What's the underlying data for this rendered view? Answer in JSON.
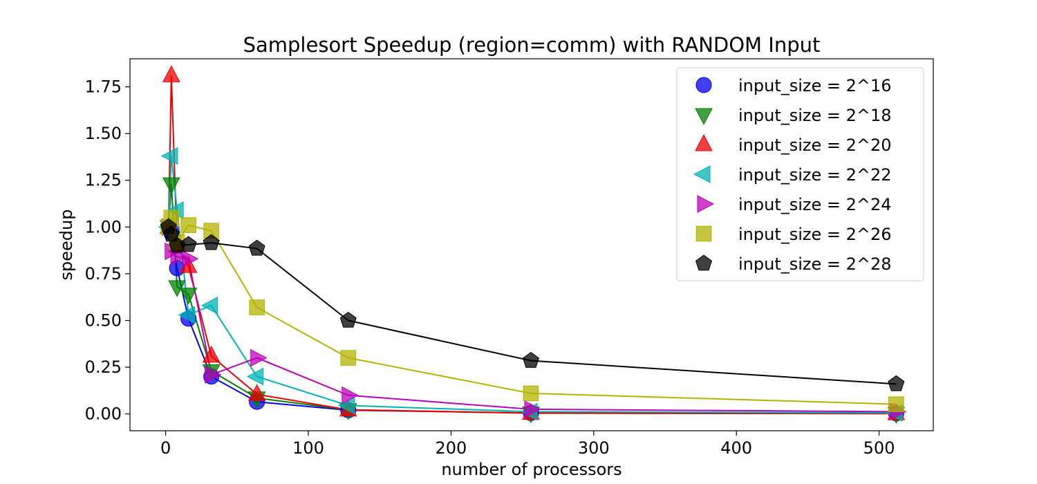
{
  "chart_data": {
    "type": "line",
    "title": "Samplesort Speedup (region=comm) with RANDOM Input",
    "xlabel": "number of processors",
    "ylabel": "speedup",
    "xlim": [
      -25,
      538
    ],
    "ylim": [
      -0.09,
      1.9
    ],
    "xticks": [
      0,
      100,
      200,
      300,
      400,
      500
    ],
    "yticks": [
      0.0,
      0.25,
      0.5,
      0.75,
      1.0,
      1.25,
      1.5,
      1.75
    ],
    "ytick_labels": [
      "0.00",
      "0.25",
      "0.50",
      "0.75",
      "1.00",
      "1.25",
      "1.50",
      "1.75"
    ],
    "grid": false,
    "legend_position": "top-right",
    "x": [
      2,
      4,
      8,
      16,
      32,
      64,
      128,
      256,
      512
    ],
    "series": [
      {
        "name": "input_size = 2^16",
        "marker": "circle",
        "color": "#0000ee",
        "values": [
          1.0,
          0.97,
          0.78,
          0.51,
          0.2,
          0.065,
          0.02,
          0.005,
          0.003
        ]
      },
      {
        "name": "input_size = 2^18",
        "marker": "triangle-down",
        "color": "#008000",
        "values": [
          1.0,
          1.23,
          0.68,
          0.64,
          0.23,
          0.085,
          0.022,
          0.005,
          0.002
        ]
      },
      {
        "name": "input_size = 2^20",
        "marker": "triangle-up",
        "color": "#ee0000",
        "values": [
          1.0,
          1.81,
          0.9,
          0.79,
          0.31,
          0.105,
          0.022,
          0.004,
          0.002
        ]
      },
      {
        "name": "input_size = 2^22",
        "marker": "triangle-left",
        "color": "#00b3b3",
        "values": [
          1.0,
          1.38,
          1.09,
          0.53,
          0.58,
          0.2,
          0.045,
          0.012,
          0.006
        ]
      },
      {
        "name": "input_size = 2^24",
        "marker": "triangle-right",
        "color": "#bb00bb",
        "values": [
          1.0,
          0.87,
          0.84,
          0.83,
          0.21,
          0.3,
          0.1,
          0.025,
          0.012
        ]
      },
      {
        "name": "input_size = 2^26",
        "marker": "square",
        "color": "#b3b300",
        "values": [
          1.0,
          1.05,
          0.92,
          1.01,
          0.98,
          0.57,
          0.3,
          0.11,
          0.052
        ]
      },
      {
        "name": "input_size = 2^28",
        "marker": "pentagon",
        "color": "#000000",
        "values": [
          1.0,
          0.96,
          0.9,
          0.905,
          0.915,
          0.885,
          0.5,
          0.285,
          0.16
        ]
      }
    ]
  }
}
